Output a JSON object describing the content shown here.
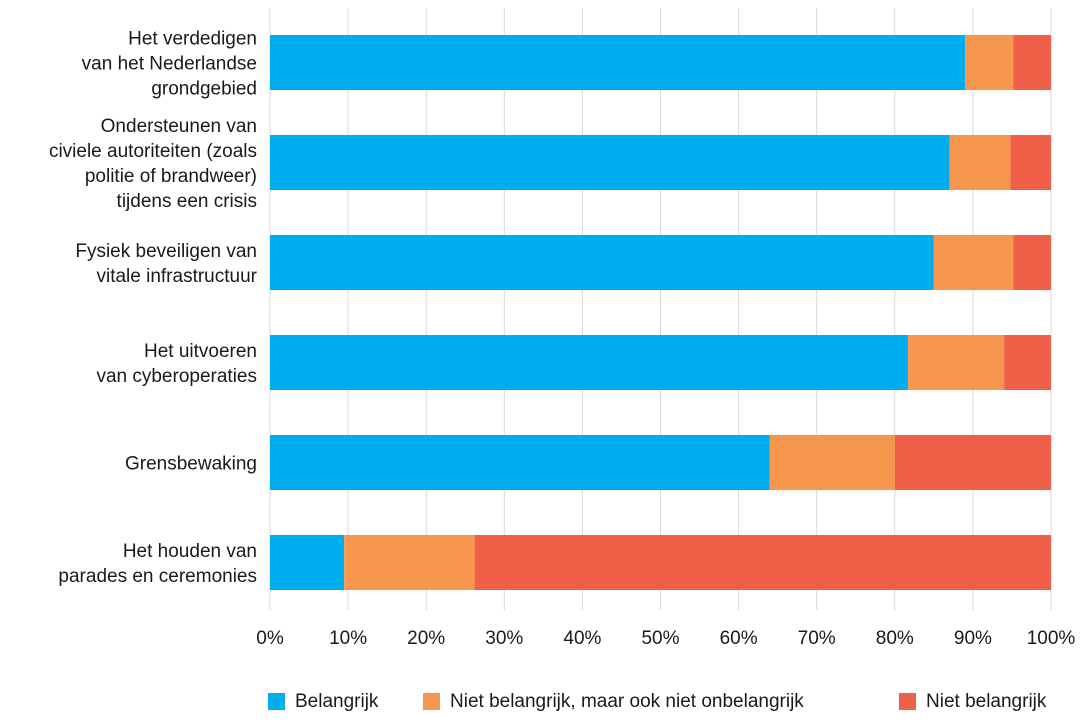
{
  "chart_data": {
    "type": "bar",
    "orientation": "horizontal",
    "stacked": true,
    "title": "",
    "xlabel": "",
    "ylabel": "",
    "xlim": [
      0,
      100
    ],
    "x_ticks": [
      "0%",
      "10%",
      "20%",
      "30%",
      "40%",
      "50%",
      "60%",
      "70%",
      "80%",
      "90%",
      "100%"
    ],
    "grid": "vertical",
    "legend_position": "bottom",
    "categories": [
      [
        "Het verdedigen",
        "van het Nederlandse",
        "grondgebied"
      ],
      [
        "Ondersteunen van",
        "civiele autoriteiten (zoals",
        "politie of brandweer)",
        "tijdens een crisis"
      ],
      [
        "Fysiek beveiligen van",
        "vitale infrastructuur"
      ],
      [
        "Het uitvoeren",
        "van cyberoperaties"
      ],
      [
        "Grensbewaking"
      ],
      [
        "Het houden van",
        "parades en ceremonies"
      ]
    ],
    "series": [
      {
        "name": "Belangrijk",
        "color": "#00aeef",
        "values": [
          89,
          87,
          85,
          81.7,
          64,
          9.5
        ]
      },
      {
        "name": "Niet belangrijk, maar ook niet onbelangrijk",
        "color": "#f7974e",
        "values": [
          6.2,
          7.8,
          10.2,
          12.3,
          16,
          16.7
        ]
      },
      {
        "name": "Niet belangrijk",
        "color": "#f05f47",
        "values": [
          4.8,
          5.2,
          4.8,
          6,
          20,
          73.8
        ]
      }
    ]
  }
}
